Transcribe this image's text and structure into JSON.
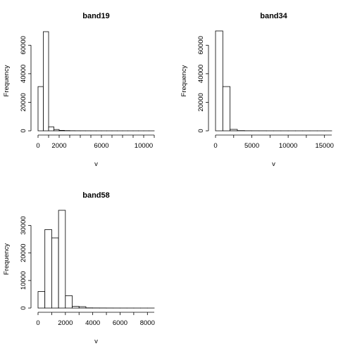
{
  "chart_data": [
    {
      "type": "bar",
      "subtype": "histogram",
      "title": "band19",
      "xlabel": "v",
      "ylabel": "Frequency",
      "bin_width": 500,
      "bin_start": 0,
      "values": [
        31000,
        69500,
        2800,
        900,
        300,
        150,
        80,
        50,
        40,
        30,
        20,
        15,
        12,
        10,
        8,
        6,
        5,
        4,
        4,
        3,
        3,
        2
      ],
      "xlim": [
        0,
        11000
      ],
      "ylim": [
        0,
        70000
      ],
      "xticks": [
        0,
        2000,
        6000,
        10000
      ],
      "yticks": [
        0,
        20000,
        40000,
        60000
      ]
    },
    {
      "type": "bar",
      "subtype": "histogram",
      "title": "band34",
      "xlabel": "v",
      "ylabel": "Frequency",
      "bin_width": 1000,
      "bin_start": 0,
      "values": [
        70000,
        31000,
        1000,
        150,
        60,
        40,
        30,
        20,
        15,
        10,
        8,
        6,
        5,
        4,
        3,
        2
      ],
      "xlim": [
        0,
        16000
      ],
      "ylim": [
        0,
        70000
      ],
      "xticks": [
        0,
        5000,
        10000,
        15000
      ],
      "yticks": [
        0,
        20000,
        40000,
        60000
      ]
    },
    {
      "type": "bar",
      "subtype": "histogram",
      "title": "band58",
      "xlabel": "v",
      "ylabel": "Frequency",
      "bin_width": 500,
      "bin_start": 0,
      "values": [
        6000,
        28500,
        25500,
        35500,
        4500,
        600,
        500,
        60,
        40,
        30,
        20,
        15,
        10,
        8,
        6,
        5,
        3
      ],
      "xlim": [
        0,
        8500
      ],
      "ylim": [
        0,
        35500
      ],
      "xticks": [
        0,
        2000,
        4000,
        6000,
        8000
      ],
      "yticks": [
        0,
        10000,
        20000,
        30000
      ]
    }
  ]
}
